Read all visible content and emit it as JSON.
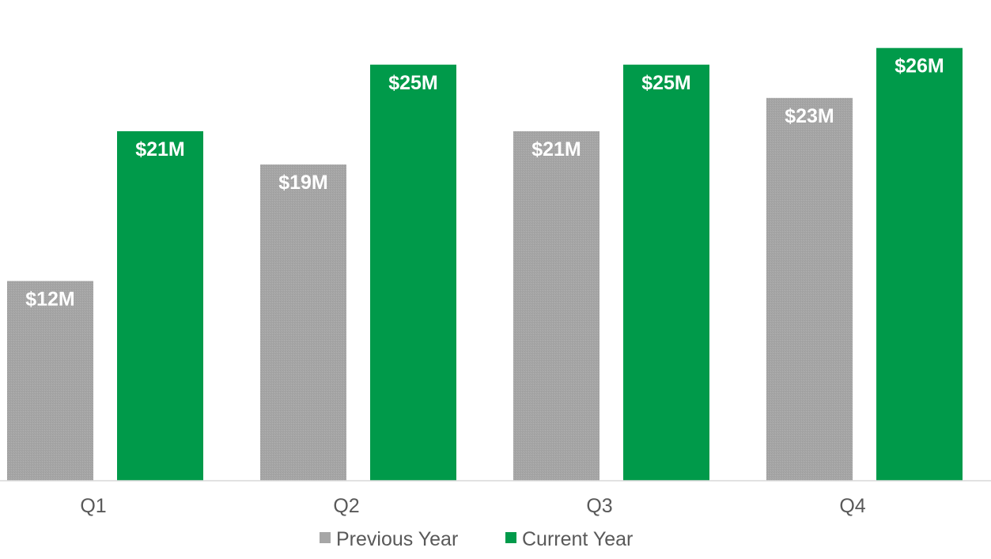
{
  "chart_data": {
    "type": "bar",
    "title": "",
    "xlabel": "",
    "ylabel": "",
    "categories": [
      "Q1",
      "Q2",
      "Q3",
      "Q4"
    ],
    "series": [
      {
        "name": "Previous Year",
        "color": "#a6a6a6",
        "values": [
          12,
          19,
          21,
          23
        ],
        "labels": [
          "$12M",
          "$19M",
          "$21M",
          "$23M"
        ]
      },
      {
        "name": "Current Year",
        "color": "#009a4a",
        "values": [
          21,
          25,
          25,
          26
        ],
        "labels": [
          "$21M",
          "$25M",
          "$25M",
          "$26M"
        ]
      }
    ],
    "ylim": [
      0,
      28
    ],
    "grid": false,
    "legend_position": "bottom-center"
  }
}
